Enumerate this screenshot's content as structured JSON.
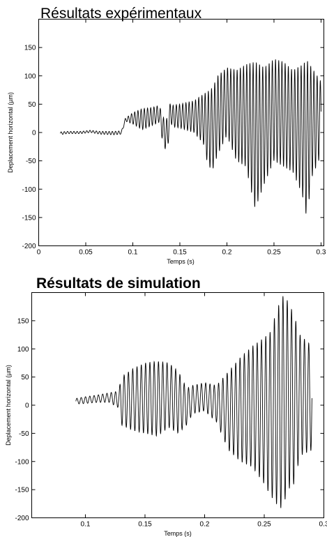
{
  "chart_data": [
    {
      "type": "line",
      "title": "Résultats expérimentaux",
      "xlabel": "Temps (s)",
      "ylabel": "Deplacement horizontal (µm)",
      "xlim": [
        0,
        0.303
      ],
      "ylim": [
        -200,
        200
      ],
      "xticks": [
        "0",
        "0.05",
        "0.1",
        "0.15",
        "0.2",
        "0.25",
        "0.3"
      ],
      "xtick_values": [
        0,
        0.05,
        0.1,
        0.15,
        0.2,
        0.25,
        0.3
      ],
      "yticks": [
        "-200",
        "-150",
        "-100",
        "-50",
        "0",
        "50",
        "100",
        "150"
      ],
      "ytick_values": [
        -200,
        -150,
        -100,
        -50,
        0,
        50,
        100,
        150
      ],
      "grid": false,
      "series_color": "#000000",
      "envelope": {
        "t": [
          0.023,
          0.03,
          0.045,
          0.055,
          0.065,
          0.08,
          0.088,
          0.092,
          0.1,
          0.11,
          0.12,
          0.128,
          0.133,
          0.137,
          0.14,
          0.142,
          0.15,
          0.165,
          0.175,
          0.18,
          0.185,
          0.19,
          0.2,
          0.21,
          0.22,
          0.23,
          0.24,
          0.25,
          0.26,
          0.27,
          0.28,
          0.285,
          0.29,
          0.3
        ],
        "upper": [
          1,
          2,
          2,
          4,
          2,
          2,
          3,
          25,
          35,
          42,
          44,
          48,
          25,
          25,
          55,
          48,
          50,
          56,
          68,
          73,
          80,
          100,
          115,
          110,
          120,
          125,
          115,
          130,
          125,
          110,
          120,
          128,
          115,
          90
        ],
        "lower": [
          -4,
          -2,
          -2,
          0,
          -3,
          -4,
          -3,
          20,
          15,
          5,
          12,
          18,
          -28,
          -30,
          20,
          10,
          8,
          0,
          -20,
          -60,
          -65,
          -40,
          -5,
          -50,
          -60,
          -135,
          -90,
          -50,
          -60,
          -70,
          -110,
          -152,
          -80,
          -40
        ]
      }
    },
    {
      "type": "line",
      "title": "Résultats de simulation",
      "xlabel": "Temps (s)",
      "ylabel": "Deplacement horizontal (µm)",
      "xlim": [
        0.055,
        0.3
      ],
      "ylim": [
        -200,
        200
      ],
      "xticks": [
        "0.1",
        "0.15",
        "0.2",
        "0.25",
        "0.3"
      ],
      "xtick_values": [
        0.1,
        0.15,
        0.2,
        0.25,
        0.3
      ],
      "yticks": [
        "-200",
        "-150",
        "-100",
        "-50",
        "0",
        "50",
        "100",
        "150"
      ],
      "ytick_values": [
        -200,
        -150,
        -100,
        -50,
        0,
        50,
        100,
        150
      ],
      "grid": false,
      "series_color": "#000000",
      "envelope": {
        "t": [
          0.092,
          0.1,
          0.11,
          0.12,
          0.128,
          0.13,
          0.14,
          0.15,
          0.16,
          0.17,
          0.178,
          0.185,
          0.19,
          0.2,
          0.21,
          0.22,
          0.23,
          0.24,
          0.25,
          0.255,
          0.26,
          0.265,
          0.27,
          0.275,
          0.28,
          0.29
        ],
        "upper": [
          12,
          15,
          18,
          22,
          25,
          50,
          65,
          75,
          78,
          75,
          60,
          30,
          35,
          40,
          35,
          60,
          85,
          105,
          120,
          130,
          165,
          195,
          185,
          160,
          125,
          105
        ],
        "lower": [
          2,
          3,
          5,
          5,
          -5,
          -35,
          -45,
          -50,
          -55,
          -40,
          -50,
          -35,
          -15,
          -10,
          -30,
          -80,
          -100,
          -110,
          -140,
          -160,
          -175,
          -185,
          -150,
          -140,
          -90,
          -80
        ]
      }
    }
  ]
}
